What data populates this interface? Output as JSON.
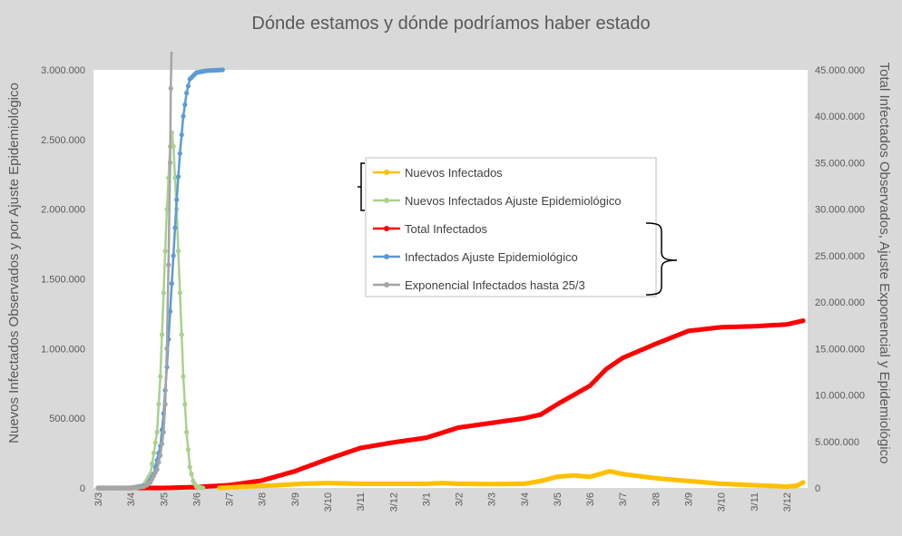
{
  "chart_data": {
    "type": "line",
    "title": "Dónde estamos y dónde podríamos haber estado",
    "ylabel": "Nuevos Infectados Observados y por Ajuste Epidemiológico",
    "y2label": "Total Infectados Observados, Ajuste Exponencial y Epidemiológico",
    "x_ticks": [
      "3/3",
      "3/4",
      "3/5",
      "3/6",
      "3/7",
      "3/8",
      "3/9",
      "3/10",
      "3/11",
      "3/12",
      "3/1",
      "3/2",
      "3/3",
      "3/4",
      "3/5",
      "3/6",
      "3/7",
      "3/8",
      "3/9",
      "3/10",
      "3/11",
      "3/12"
    ],
    "y_ticks": [
      "0",
      "500.000",
      "1.000.000",
      "1.500.000",
      "2.000.000",
      "2.500.000",
      "3.000.000"
    ],
    "y2_ticks": [
      "0",
      "5.000.000",
      "10.000.000",
      "15.000.000",
      "20.000.000",
      "25.000.000",
      "30.000.000",
      "35.000.000",
      "40.000.000",
      "45.000.000"
    ],
    "ylim": [
      0,
      3000000
    ],
    "y2lim": [
      0,
      45000000
    ],
    "grid": false,
    "legend_position": "center",
    "x_domain": [
      0,
      21.5
    ],
    "series": [
      {
        "name": "Nuevos Infectados",
        "axis": "left",
        "color": "#ffc000",
        "points": [
          [
            3.7,
            0
          ],
          [
            4.5,
            10000
          ],
          [
            5.5,
            20000
          ],
          [
            6.2,
            30000
          ],
          [
            7,
            35000
          ],
          [
            8,
            30000
          ],
          [
            9,
            30000
          ],
          [
            10,
            30000
          ],
          [
            10.5,
            35000
          ],
          [
            11,
            30000
          ],
          [
            12,
            28000
          ],
          [
            13,
            30000
          ],
          [
            13.5,
            50000
          ],
          [
            14,
            80000
          ],
          [
            14.5,
            90000
          ],
          [
            15,
            80000
          ],
          [
            15.3,
            100000
          ],
          [
            15.6,
            120000
          ],
          [
            16,
            100000
          ],
          [
            16.5,
            85000
          ],
          [
            17,
            70000
          ],
          [
            17.5,
            60000
          ],
          [
            18,
            50000
          ],
          [
            18.5,
            40000
          ],
          [
            19,
            30000
          ],
          [
            20,
            20000
          ],
          [
            21,
            10000
          ],
          [
            21.3,
            15000
          ],
          [
            21.5,
            40000
          ]
        ]
      },
      {
        "name": "Nuevos Infectados Ajuste Epidemiológico",
        "axis": "left",
        "color": "#a9d18e",
        "points": [
          [
            0,
            0
          ],
          [
            1,
            0
          ],
          [
            1.2,
            1000
          ],
          [
            1.4,
            20000
          ],
          [
            1.6,
            100000
          ],
          [
            1.8,
            400000
          ],
          [
            1.9,
            800000
          ],
          [
            2.0,
            1400000
          ],
          [
            2.1,
            2000000
          ],
          [
            2.2,
            2450000
          ],
          [
            2.25,
            2550000
          ],
          [
            2.3,
            2450000
          ],
          [
            2.4,
            2000000
          ],
          [
            2.5,
            1400000
          ],
          [
            2.6,
            800000
          ],
          [
            2.7,
            400000
          ],
          [
            2.8,
            150000
          ],
          [
            2.9,
            50000
          ],
          [
            3.0,
            10000
          ],
          [
            3.2,
            0
          ]
        ]
      },
      {
        "name": "Total Infectados",
        "axis": "right",
        "color": "#ff0000",
        "points": [
          [
            0,
            0
          ],
          [
            2,
            0
          ],
          [
            3,
            100000
          ],
          [
            4,
            300000
          ],
          [
            5,
            800000
          ],
          [
            6,
            1800000
          ],
          [
            7,
            3100000
          ],
          [
            8,
            4300000
          ],
          [
            9,
            4900000
          ],
          [
            10,
            5400000
          ],
          [
            11,
            6500000
          ],
          [
            12,
            7000000
          ],
          [
            13,
            7500000
          ],
          [
            13.5,
            7900000
          ],
          [
            14,
            9000000
          ],
          [
            15,
            11000000
          ],
          [
            15.5,
            12800000
          ],
          [
            16,
            14000000
          ],
          [
            17,
            15500000
          ],
          [
            18,
            16900000
          ],
          [
            19,
            17300000
          ],
          [
            20,
            17400000
          ],
          [
            21,
            17600000
          ],
          [
            21.5,
            18000000
          ]
        ]
      },
      {
        "name": "Infectados Ajuste Epidemiológico",
        "axis": "right",
        "color": "#5b9bd5",
        "points": [
          [
            0,
            0
          ],
          [
            1,
            0
          ],
          [
            1.5,
            300000
          ],
          [
            1.7,
            1500000
          ],
          [
            1.9,
            4500000
          ],
          [
            2.0,
            8000000
          ],
          [
            2.1,
            13000000
          ],
          [
            2.2,
            19000000
          ],
          [
            2.3,
            25000000
          ],
          [
            2.4,
            31000000
          ],
          [
            2.5,
            36000000
          ],
          [
            2.6,
            40000000
          ],
          [
            2.7,
            42500000
          ],
          [
            2.8,
            44000000
          ],
          [
            3.0,
            44700000
          ],
          [
            3.3,
            44900000
          ],
          [
            3.8,
            45000000
          ]
        ]
      },
      {
        "name": "Exponencial Infectados hasta 25/3",
        "axis": "right",
        "color": "#a5a5a5",
        "points": [
          [
            0,
            0
          ],
          [
            1,
            0
          ],
          [
            1.4,
            150000
          ],
          [
            1.6,
            600000
          ],
          [
            1.8,
            2000000
          ],
          [
            1.9,
            3500000
          ],
          [
            2.0,
            6000000
          ],
          [
            2.05,
            9000000
          ],
          [
            2.1,
            15000000
          ],
          [
            2.15,
            24000000
          ],
          [
            2.2,
            35000000
          ],
          [
            2.22,
            43000000
          ],
          [
            2.24,
            47000000
          ]
        ]
      }
    ]
  }
}
